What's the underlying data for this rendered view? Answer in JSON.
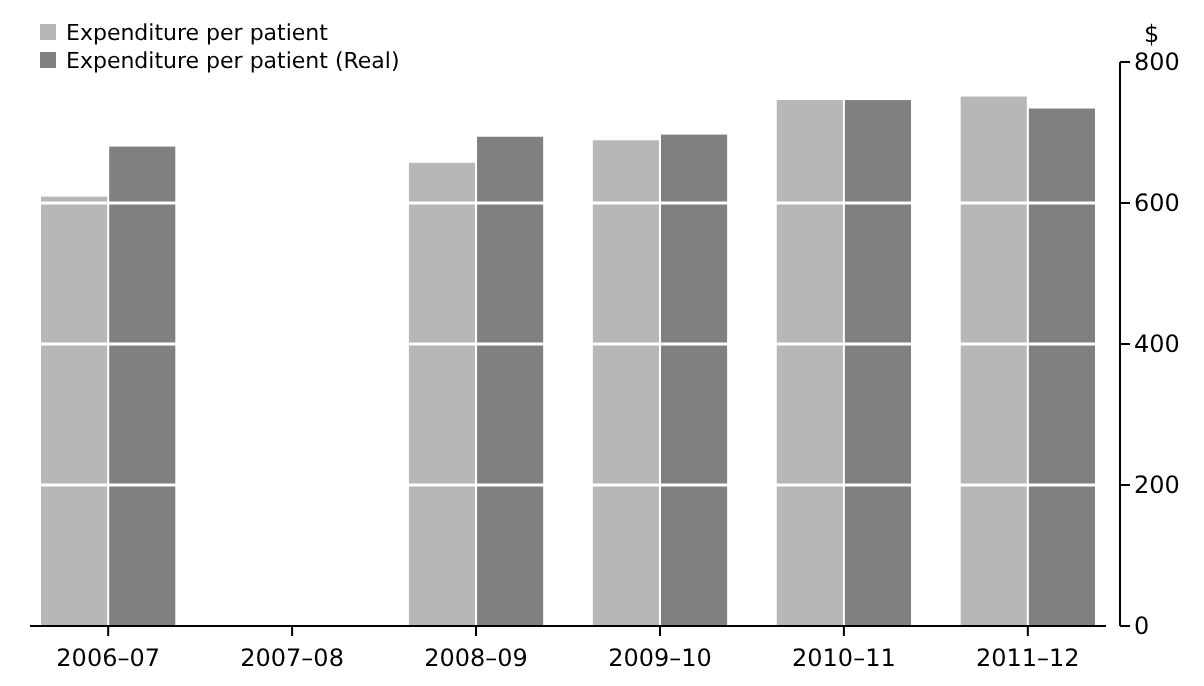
{
  "chart_data": {
    "type": "bar",
    "categories": [
      "2006–07",
      "2007–08",
      "2008–09",
      "2009–10",
      "2010–11",
      "2011–12"
    ],
    "series": [
      {
        "name": "Expenditure per patient",
        "color": "#b7b7b7",
        "values": [
          609,
          null,
          657,
          689,
          746,
          751
        ]
      },
      {
        "name": "Expenditure per patient (Real)",
        "color": "#808080",
        "values": [
          680,
          null,
          694,
          697,
          746,
          734
        ]
      }
    ],
    "ylabel": "$",
    "ylim": [
      0,
      800
    ],
    "yticks": [
      0,
      200,
      400,
      600,
      800
    ],
    "grid": "y",
    "legend": "top left"
  }
}
